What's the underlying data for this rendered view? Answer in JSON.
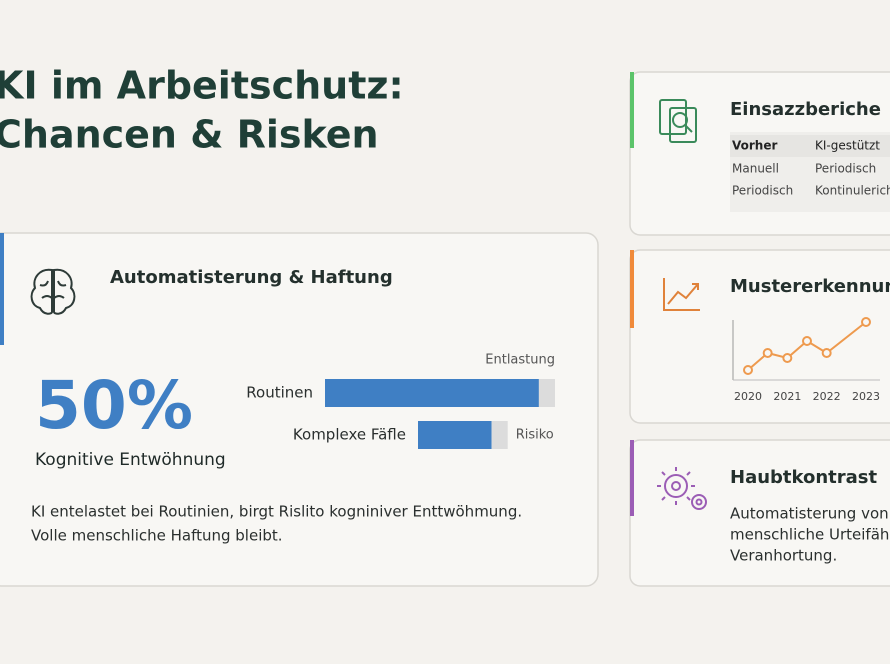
{
  "header": {
    "title_lines": [
      "KI im Arbeitschutz:",
      "Chancen & Risken"
    ]
  },
  "main_card": {
    "title": "Automatisterung & Haftung",
    "stat": "50%",
    "stat_label": "Kognitive Entwöhnung",
    "bars": {
      "type": "bar",
      "categories": [
        "Routinen",
        "Komplexe Fäfle"
      ],
      "series": [
        {
          "name": "Entlastung",
          "color": "#3f7fc4",
          "values": [
            93,
            32
          ]
        },
        {
          "name": "Risiko",
          "color": "#dcdcdc",
          "values": [
            7,
            7
          ]
        }
      ],
      "xlim": [
        0,
        100
      ]
    },
    "text_lines": [
      "KI entelastet bei Routinien, birgt Rislito kogniniver Enttwöhmung.",
      "Volle menschliche Haftung bleibt."
    ]
  },
  "cards": [
    {
      "title": "Einsazzberiche",
      "table": {
        "header": [
          "Vorher",
          "KI-gestützt"
        ],
        "rows": [
          [
            "Manuell",
            "Periodisch"
          ],
          [
            "Periodisch",
            "Kontinulerich"
          ]
        ]
      }
    },
    {
      "title": "Mustererkennung",
      "chart": {
        "type": "line",
        "x": [
          2020,
          2020.5,
          2021,
          2021.5,
          2022,
          2023
        ],
        "values": [
          8,
          25,
          20,
          37,
          25,
          56
        ],
        "color": "#ee9a4e",
        "xlim": [
          2020,
          2023
        ],
        "xticks": [
          2020,
          2021,
          2022,
          2023
        ],
        "ylim": [
          0,
          60
        ]
      }
    },
    {
      "title": "Haubtkontrast",
      "text_lines": [
        "Automatisterung von A",
        "menschliche Urteifähb",
        "Veranhortung."
      ]
    }
  ]
}
